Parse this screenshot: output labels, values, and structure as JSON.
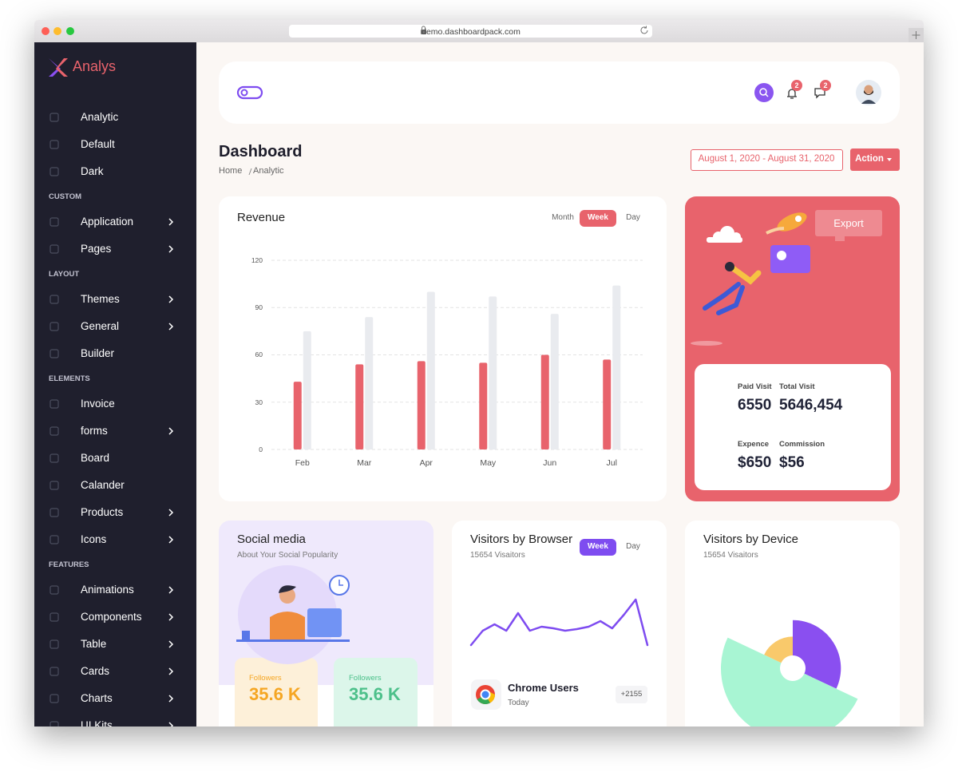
{
  "browser": {
    "url": "demo.dashboardpack.com"
  },
  "sidebar": {
    "brand": "Analys",
    "sections": [
      {
        "items": [
          {
            "label": "Analytic"
          },
          {
            "label": "Default"
          },
          {
            "label": "Dark"
          }
        ]
      },
      {
        "heading": "CUSTOM",
        "items": [
          {
            "label": "Application",
            "submenu": true
          },
          {
            "label": "Pages",
            "submenu": true
          }
        ]
      },
      {
        "heading": "LAYOUT",
        "items": [
          {
            "label": "Themes",
            "submenu": true
          },
          {
            "label": "General",
            "submenu": true
          },
          {
            "label": "Builder"
          }
        ]
      },
      {
        "heading": "ELEMENTS",
        "items": [
          {
            "label": "Invoice"
          },
          {
            "label": "forms",
            "submenu": true
          },
          {
            "label": "Board"
          },
          {
            "label": "Calander"
          },
          {
            "label": "Products",
            "submenu": true
          },
          {
            "label": "Icons",
            "submenu": true
          }
        ]
      },
      {
        "heading": "FEATURES",
        "items": [
          {
            "label": "Animations",
            "submenu": true
          },
          {
            "label": "Components",
            "submenu": true
          },
          {
            "label": "Table",
            "submenu": true
          },
          {
            "label": "Cards",
            "submenu": true
          },
          {
            "label": "Charts",
            "submenu": true
          },
          {
            "label": "UI Kits",
            "submenu": true
          }
        ]
      }
    ]
  },
  "header": {
    "notifications": 2,
    "messages": 2
  },
  "page": {
    "title": "Dashboard",
    "breadcrumb": [
      "Home",
      "Analytic"
    ],
    "date_range": "August 1, 2020 - August 31, 2020",
    "action": "Action"
  },
  "stats": {
    "export": "Export",
    "items": [
      {
        "label": "Paid Visit",
        "value": 6550
      },
      {
        "label": "Total Visit",
        "value": "5646,454"
      },
      {
        "label": "Expence",
        "value": "$650"
      },
      {
        "label": "Commission",
        "value": "$56"
      }
    ]
  },
  "social_media": {
    "title": "Social media",
    "subtitle": "About Your Social Popularity",
    "followers": [
      {
        "label": "Followers",
        "value": "35.6 K"
      },
      {
        "label": "Followers",
        "value": "35.6 K"
      }
    ]
  },
  "browsers": [
    {
      "name": "Chrome Users",
      "period": "Today",
      "change": "+2155"
    }
  ],
  "chart_data": [
    {
      "type": "bar",
      "title": "Revenue",
      "tabs": [
        "Month",
        "Week",
        "Day"
      ],
      "active_tab": 1,
      "categories": [
        "Feb",
        "Mar",
        "Apr",
        "May",
        "Jun",
        "Jul"
      ],
      "series": [
        {
          "color": "#e8636c",
          "values": [
            43,
            54,
            56,
            55,
            60,
            57
          ]
        },
        {
          "color": "#e9ebef",
          "values": [
            75,
            84,
            100,
            97,
            86,
            104
          ]
        }
      ],
      "ylim": [
        0,
        120
      ],
      "yticks": [
        0,
        30,
        60,
        90,
        120
      ],
      "grid": true
    },
    {
      "type": "line",
      "title": "Visitors by Browser",
      "subtitle": "15654 Visaitors",
      "tabs": [
        "Week",
        "Day"
      ],
      "active_tab": 0,
      "color": "#7e4cf0",
      "values": [
        0,
        18,
        26,
        18,
        40,
        18,
        23,
        21,
        18,
        20,
        23,
        30,
        21,
        38,
        57,
        0
      ]
    },
    {
      "type": "pie",
      "title": "Visitors by Device",
      "subtitle": "15654 Visaitors",
      "values": [
        32,
        50,
        18
      ],
      "radii": [
        67,
        100,
        44
      ],
      "colors": [
        "#8a4ff0",
        "#a8f5d3",
        "#f9c96b"
      ]
    }
  ]
}
